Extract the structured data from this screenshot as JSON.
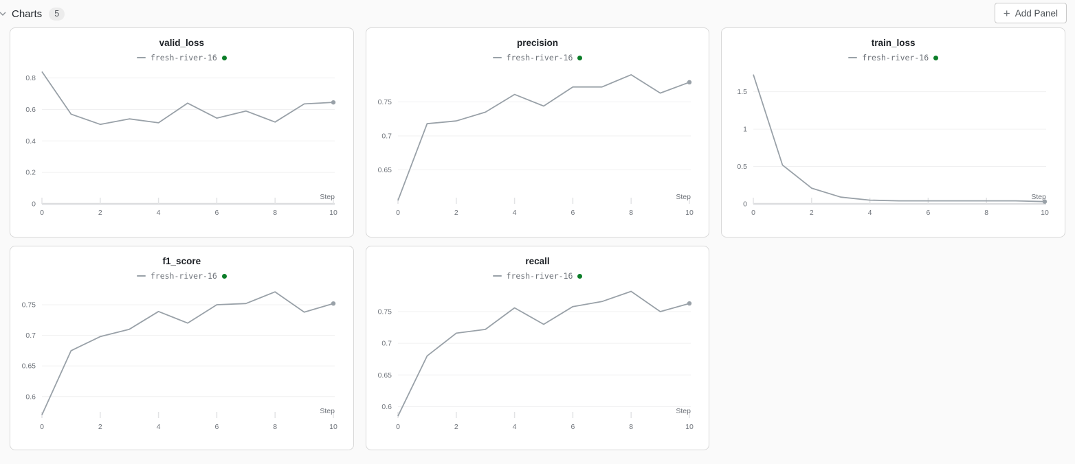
{
  "header": {
    "section_label": "Charts",
    "panel_count": "5",
    "add_panel_label": "Add Panel"
  },
  "run": {
    "name": "fresh-river-16",
    "state": "finished"
  },
  "theme": {
    "line_color": "#99a1a8",
    "run_state_green": "#0b7d28",
    "grid_color": "#f0f0f1",
    "axis_color": "#dcdddf",
    "tick_label_color": "#6e737a",
    "panel_border": "#d8d8d8",
    "page_bg": "#fafafa"
  },
  "chart_data": [
    {
      "type": "line",
      "title": "valid_loss",
      "xlabel": "Step",
      "x": [
        0,
        1,
        2,
        3,
        4,
        5,
        6,
        7,
        8,
        9,
        10
      ],
      "series": [
        {
          "name": "fresh-river-16",
          "values": [
            0.84,
            0.57,
            0.505,
            0.54,
            0.515,
            0.64,
            0.545,
            0.59,
            0.52,
            0.635,
            0.645
          ]
        }
      ],
      "xticks": [
        0,
        2,
        4,
        6,
        8,
        10
      ],
      "xlim": [
        0,
        10
      ],
      "yticks": [
        0,
        0.2,
        0.4,
        0.6,
        0.8
      ],
      "ylim": [
        0,
        0.855
      ],
      "baseline_at_zero": true,
      "legend_position": "top",
      "grid": true
    },
    {
      "type": "line",
      "title": "precision",
      "xlabel": "Step",
      "x": [
        0,
        1,
        2,
        3,
        4,
        5,
        6,
        7,
        8,
        9,
        10
      ],
      "series": [
        {
          "name": "fresh-river-16",
          "values": [
            0.605,
            0.718,
            0.722,
            0.735,
            0.761,
            0.744,
            0.772,
            0.772,
            0.79,
            0.763,
            0.779
          ]
        }
      ],
      "xticks": [
        0,
        2,
        4,
        6,
        8,
        10
      ],
      "xlim": [
        0,
        10
      ],
      "yticks": [
        0.65,
        0.7,
        0.75
      ],
      "ylim": [
        0.6,
        0.798
      ],
      "baseline_at_zero": false,
      "legend_position": "top",
      "grid": true
    },
    {
      "type": "line",
      "title": "train_loss",
      "xlabel": "Step",
      "x": [
        0,
        1,
        2,
        3,
        4,
        5,
        6,
        7,
        8,
        9,
        10
      ],
      "series": [
        {
          "name": "fresh-river-16",
          "values": [
            1.73,
            0.52,
            0.21,
            0.09,
            0.05,
            0.04,
            0.04,
            0.04,
            0.04,
            0.04,
            0.03
          ]
        }
      ],
      "xticks": [
        0,
        2,
        4,
        6,
        8,
        10
      ],
      "xlim": [
        0,
        10
      ],
      "yticks": [
        0,
        0.5,
        1,
        1.5
      ],
      "ylim": [
        0,
        1.8
      ],
      "baseline_at_zero": true,
      "legend_position": "top",
      "grid": true
    },
    {
      "type": "line",
      "title": "f1_score",
      "xlabel": "Step",
      "x": [
        0,
        1,
        2,
        3,
        4,
        5,
        6,
        7,
        8,
        9,
        10
      ],
      "series": [
        {
          "name": "fresh-river-16",
          "values": [
            0.57,
            0.675,
            0.698,
            0.71,
            0.739,
            0.72,
            0.75,
            0.752,
            0.771,
            0.738,
            0.752
          ]
        }
      ],
      "xticks": [
        0,
        2,
        4,
        6,
        8,
        10
      ],
      "xlim": [
        0,
        10
      ],
      "yticks": [
        0.6,
        0.65,
        0.7,
        0.75
      ],
      "ylim": [
        0.565,
        0.778
      ],
      "baseline_at_zero": false,
      "legend_position": "top",
      "grid": true
    },
    {
      "type": "line",
      "title": "recall",
      "xlabel": "Step",
      "x": [
        0,
        1,
        2,
        3,
        4,
        5,
        6,
        7,
        8,
        9,
        10
      ],
      "series": [
        {
          "name": "fresh-river-16",
          "values": [
            0.585,
            0.68,
            0.716,
            0.722,
            0.756,
            0.73,
            0.758,
            0.766,
            0.782,
            0.75,
            0.763
          ]
        }
      ],
      "xticks": [
        0,
        2,
        4,
        6,
        8,
        10
      ],
      "xlim": [
        0,
        10
      ],
      "yticks": [
        0.6,
        0.65,
        0.7,
        0.75
      ],
      "ylim": [
        0.582,
        0.788
      ],
      "baseline_at_zero": false,
      "legend_position": "top",
      "grid": true
    }
  ]
}
